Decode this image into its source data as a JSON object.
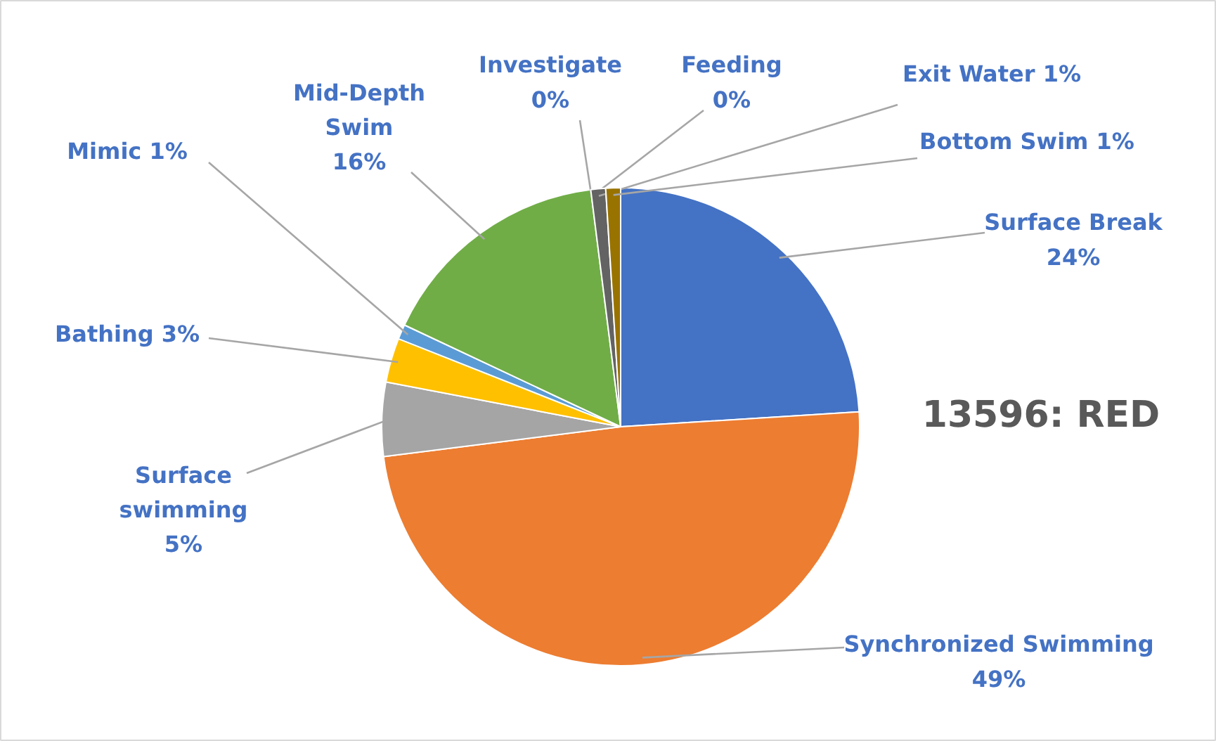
{
  "chart_data": {
    "type": "pie",
    "title": "13596: RED",
    "categories": [
      "Surface Break",
      "Synchronized Swimming",
      "Surface swimming",
      "Bathing",
      "Mimic",
      "Mid-Depth Swim",
      "Investigate",
      "Feeding",
      "Exit Water",
      "Bottom Swim"
    ],
    "values": [
      24,
      49,
      5,
      3,
      1,
      16,
      0,
      0,
      1,
      1
    ],
    "colors": [
      "#4472c4",
      "#ed7d31",
      "#a5a5a5",
      "#ffc000",
      "#5b9bd5",
      "#70ad47",
      "#264478",
      "#9e480e",
      "#636363",
      "#997300"
    ],
    "value_labels": [
      "24%",
      "49%",
      "5%",
      "3%",
      "1%",
      "16%",
      "0%",
      "0%",
      "1%",
      "1%"
    ]
  }
}
